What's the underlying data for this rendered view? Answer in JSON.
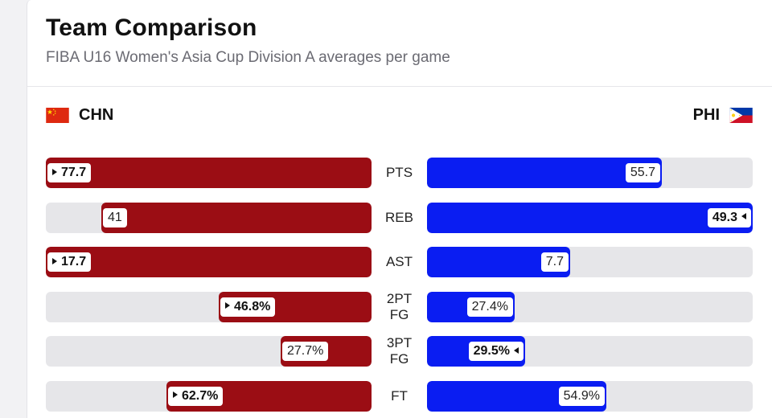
{
  "header": {
    "title": "Team Comparison",
    "subtitle": "FIBA U16 Women's Asia Cup Division A averages per game"
  },
  "teams": {
    "left": {
      "code": "CHN",
      "color": "#9b0d14",
      "flag_icon": "china-flag-icon"
    },
    "right": {
      "code": "PHI",
      "color": "#0a1df2",
      "flag_icon": "philippines-flag-icon"
    }
  },
  "stats": [
    {
      "label": "PTS",
      "left": {
        "value": "77.7",
        "fraction": 1.0,
        "leader": true
      },
      "right": {
        "value": "55.7",
        "fraction": 0.72,
        "leader": false
      }
    },
    {
      "label": "REB",
      "left": {
        "value": "41",
        "fraction": 0.83,
        "leader": false
      },
      "right": {
        "value": "49.3",
        "fraction": 1.0,
        "leader": true
      }
    },
    {
      "label": "AST",
      "left": {
        "value": "17.7",
        "fraction": 1.0,
        "leader": true
      },
      "right": {
        "value": "7.7",
        "fraction": 0.44,
        "leader": false
      }
    },
    {
      "label": "2PT FG",
      "left": {
        "value": "46.8%",
        "fraction": 0.47,
        "leader": true
      },
      "right": {
        "value": "27.4%",
        "fraction": 0.27,
        "leader": false
      }
    },
    {
      "label": "3PT FG",
      "left": {
        "value": "27.7%",
        "fraction": 0.28,
        "leader": false
      },
      "right": {
        "value": "29.5%",
        "fraction": 0.3,
        "leader": true
      }
    },
    {
      "label": "FT",
      "left": {
        "value": "62.7%",
        "fraction": 0.63,
        "leader": true
      },
      "right": {
        "value": "54.9%",
        "fraction": 0.55,
        "leader": false
      }
    }
  ]
}
